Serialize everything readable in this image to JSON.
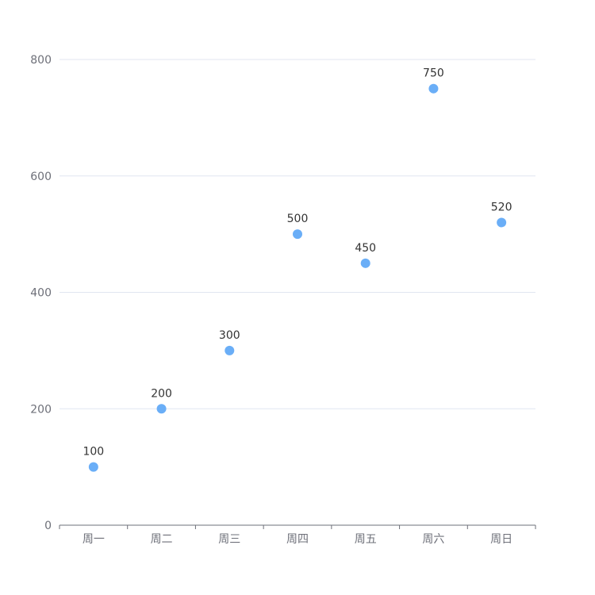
{
  "chart_data": {
    "type": "scatter",
    "categories": [
      "周一",
      "周二",
      "周三",
      "周四",
      "周五",
      "周六",
      "周日"
    ],
    "values": [
      100,
      200,
      300,
      500,
      450,
      750,
      520
    ],
    "ylim": [
      0,
      800
    ],
    "yticks": [
      0,
      200,
      400,
      600,
      800
    ],
    "grid": true,
    "point_color": "#6aaef7",
    "grid_color": "#e0e6f1",
    "axis_color": "#6e7079",
    "label_color": "#333333"
  }
}
